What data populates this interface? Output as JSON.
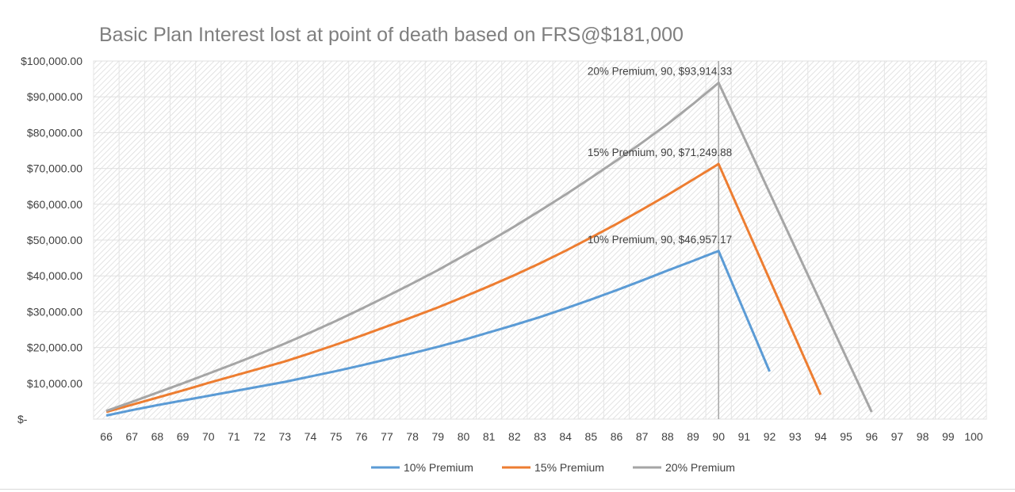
{
  "chart_data": {
    "type": "line",
    "title": "Basic Plan Interest lost at point of death based on FRS@$181,000",
    "xlabel": "",
    "ylabel": "",
    "categories": [
      66,
      67,
      68,
      69,
      70,
      71,
      72,
      73,
      74,
      75,
      76,
      77,
      78,
      79,
      80,
      81,
      82,
      83,
      84,
      85,
      86,
      87,
      88,
      89,
      90,
      91,
      92,
      93,
      94,
      95,
      96,
      97,
      98,
      99,
      100
    ],
    "ylim": [
      0,
      100000
    ],
    "yticks": [
      "$-",
      "$10,000.00",
      "$20,000.00",
      "$30,000.00",
      "$40,000.00",
      "$50,000.00",
      "$60,000.00",
      "$70,000.00",
      "$80,000.00",
      "$90,000.00",
      "$100,000.00"
    ],
    "grid": true,
    "legend": "bottom",
    "vertical_marker_at": 90,
    "series": [
      {
        "name": "10% Premium",
        "color": "#5b9bd5",
        "values": [
          1000,
          2500,
          3900,
          5200,
          6500,
          7800,
          9100,
          10400,
          11900,
          13400,
          15000,
          16700,
          18400,
          20200,
          22100,
          24200,
          26300,
          28500,
          30900,
          33400,
          36000,
          38700,
          41500,
          44200,
          46957.17,
          30100,
          13300,
          null,
          null,
          null,
          null,
          null,
          null,
          null,
          null
        ],
        "label": "10% Premium, 90,  $46,957.17"
      },
      {
        "name": "15% Premium",
        "color": "#ed7d31",
        "values": [
          2000,
          4000,
          6000,
          8000,
          10100,
          12100,
          14100,
          16100,
          18400,
          20800,
          23300,
          25900,
          28500,
          31200,
          34100,
          37100,
          40200,
          43500,
          47000,
          50700,
          54500,
          58500,
          62600,
          66900,
          71249.88,
          55100,
          39000,
          22900,
          6800,
          null,
          null,
          null,
          null,
          null,
          null
        ],
        "label": "15% Premium, 90,  $71,249.88"
      },
      {
        "name": "20% Premium",
        "color": "#a5a5a5",
        "values": [
          2300,
          4800,
          7400,
          10000,
          12700,
          15400,
          18200,
          21100,
          24200,
          27400,
          30800,
          34300,
          37900,
          41600,
          45600,
          49600,
          53800,
          58200,
          62700,
          67400,
          72200,
          77200,
          82400,
          88000,
          93914.33,
          78600,
          63200,
          47900,
          32600,
          17300,
          2000,
          null,
          null,
          null,
          null
        ],
        "label": "20% Premium, 90,  $93,914.33"
      }
    ]
  }
}
